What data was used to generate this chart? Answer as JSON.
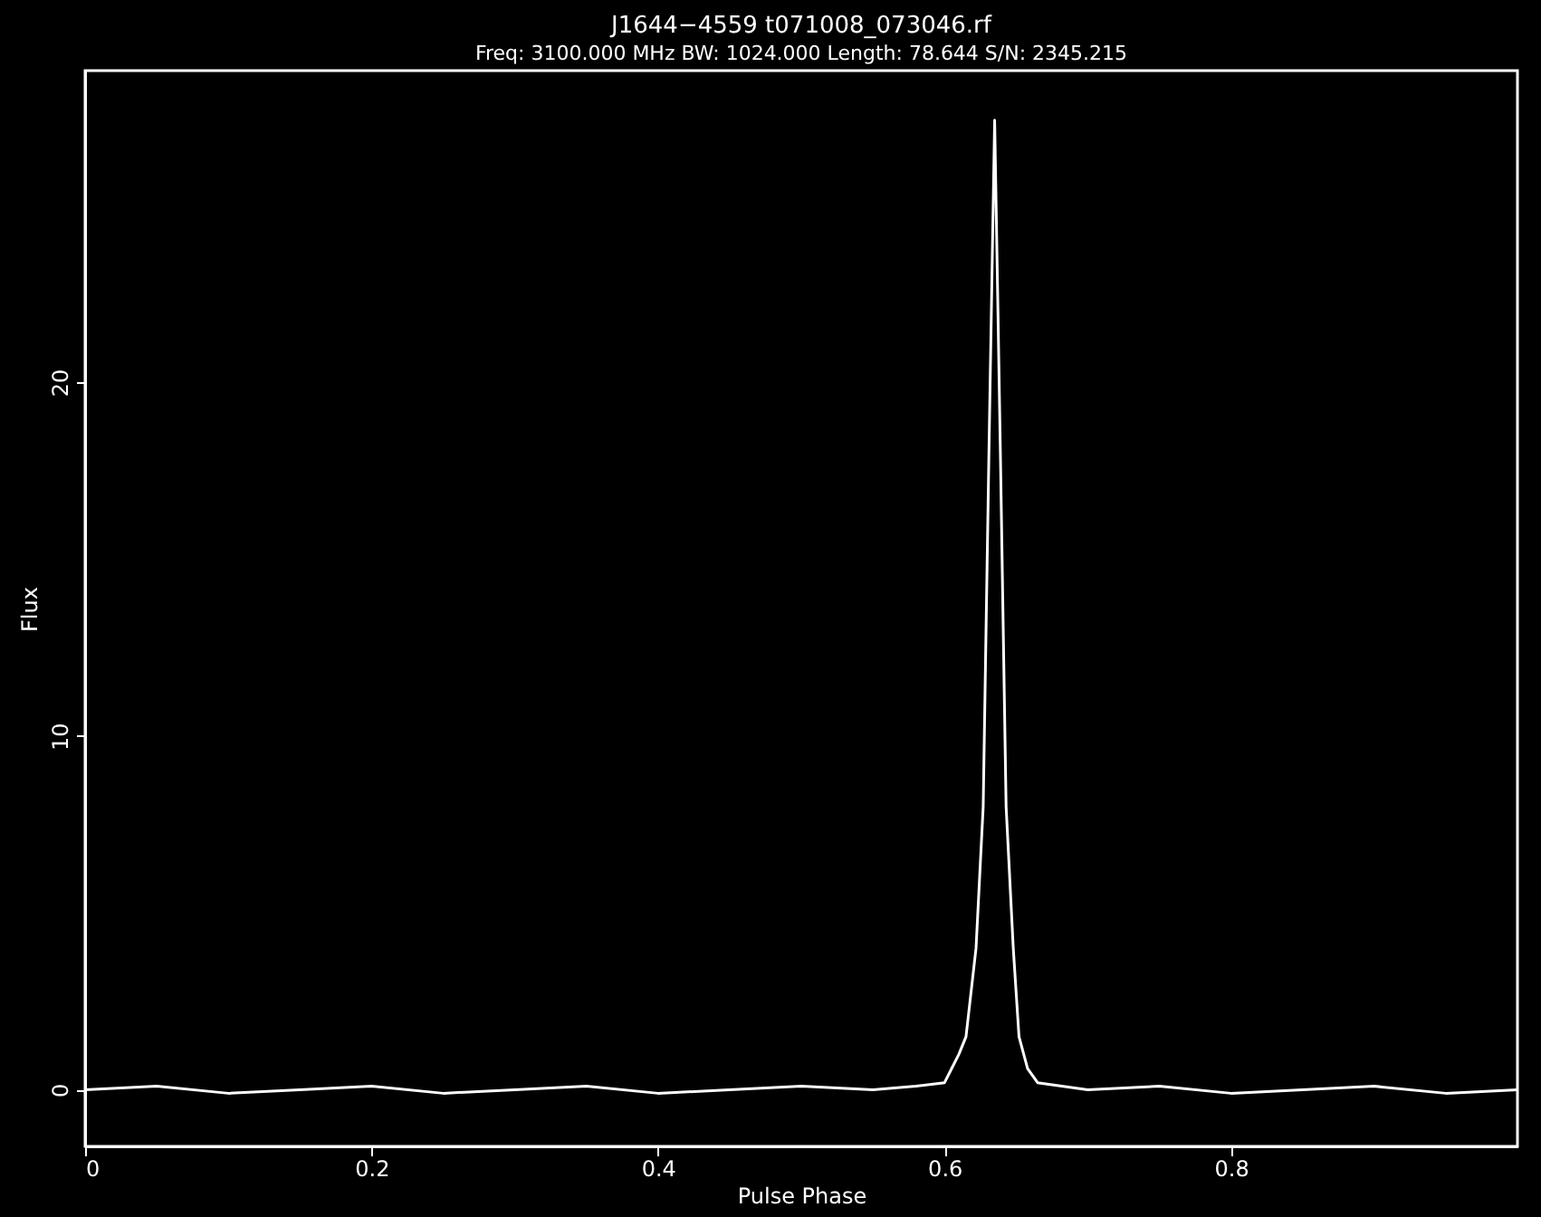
{
  "chart_data": {
    "type": "line",
    "title": "J1644−4559 t071008_073046.rf",
    "subtitle": "Freq: 3100.000 MHz BW: 1024.000 Length: 78.644 S/N: 2345.215",
    "xlabel": "Pulse Phase",
    "ylabel": "Flux",
    "x": [
      0,
      0.05,
      0.1,
      0.15,
      0.2,
      0.25,
      0.3,
      0.35,
      0.4,
      0.45,
      0.5,
      0.55,
      0.58,
      0.6,
      0.605,
      0.61,
      0.615,
      0.622,
      0.627,
      0.631,
      0.635,
      0.639,
      0.643,
      0.648,
      0.652,
      0.658,
      0.665,
      0.7,
      0.75,
      0.8,
      0.85,
      0.9,
      0.95,
      1.0
    ],
    "series": [
      {
        "color": "#ffffff",
        "values": [
          0.0,
          0.1,
          -0.1,
          0.0,
          0.1,
          -0.1,
          0.0,
          0.1,
          -0.1,
          0.0,
          0.1,
          0.0,
          0.1,
          0.2,
          0.6,
          1.0,
          1.5,
          4,
          8,
          18,
          27.4,
          18,
          8,
          4,
          1.5,
          0.6,
          0.2,
          0.0,
          0.1,
          -0.1,
          0.0,
          0.1,
          -0.1,
          0.0
        ]
      }
    ],
    "xlim": [
      0,
      1
    ],
    "ylim": [
      -1.6,
      28.8
    ],
    "xticks": [
      0,
      0.2,
      0.4,
      0.6,
      0.8
    ],
    "yticks": [
      0,
      10,
      20
    ],
    "grid": false,
    "line_style": "solid",
    "marker": "none"
  }
}
